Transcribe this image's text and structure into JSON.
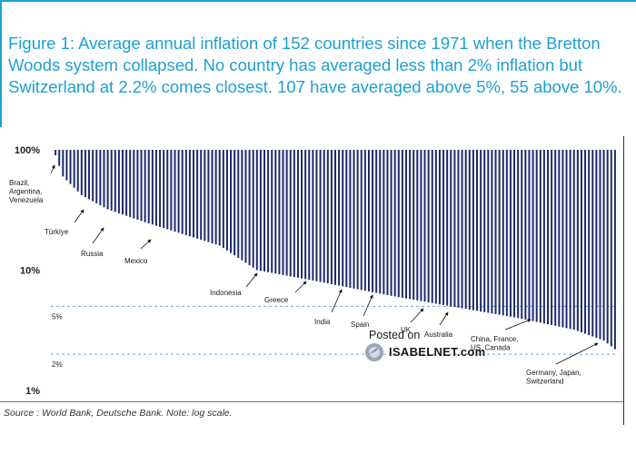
{
  "title": "Figure 1: Average annual inflation of 152 countries since 1971 when the Bretton Woods system collapsed. No country has averaged less than 2% inflation but Switzerland at 2.2% comes closest. 107 have averaged above 5%, 55 above 10%.",
  "source": "Source : World Bank, Deutsche Bank. Note: log scale.",
  "watermark": {
    "posted": "Posted on",
    "site": "ISABELNET.com"
  },
  "colors": {
    "bars": "#1b2a6e",
    "title": "#1f9fd1",
    "reference_line": "#6fa8d6",
    "arrow": "#111111"
  },
  "chart_data": {
    "type": "bar",
    "scale": "log",
    "n_countries": 152,
    "ylim": [
      1,
      100
    ],
    "y_ticks": [
      {
        "value": 100,
        "label": "100%"
      },
      {
        "value": 10,
        "label": "10%"
      },
      {
        "value": 1,
        "label": "1%"
      }
    ],
    "reference_lines": [
      {
        "value": 5,
        "label": "5%"
      },
      {
        "value": 2,
        "label": "2%"
      }
    ],
    "value_keypoints": [
      {
        "rank": 0,
        "value": 100
      },
      {
        "rank": 1,
        "value": 90
      },
      {
        "rank": 3,
        "value": 60
      },
      {
        "rank": 8,
        "value": 42
      },
      {
        "rank": 15,
        "value": 32
      },
      {
        "rank": 25,
        "value": 25
      },
      {
        "rank": 35,
        "value": 20
      },
      {
        "rank": 45,
        "value": 16
      },
      {
        "rank": 55,
        "value": 10
      },
      {
        "rank": 70,
        "value": 8.2
      },
      {
        "rank": 90,
        "value": 6.2
      },
      {
        "rank": 107,
        "value": 5
      },
      {
        "rank": 125,
        "value": 4.0
      },
      {
        "rank": 140,
        "value": 3.2
      },
      {
        "rank": 148,
        "value": 2.6
      },
      {
        "rank": 151,
        "value": 2.2
      }
    ],
    "annotations": [
      {
        "label": "Brazil,\nArgentina,\nVenezuela",
        "rank": 1
      },
      {
        "label": "Türkiye",
        "rank": 12
      },
      {
        "label": "Russia",
        "rank": 22
      },
      {
        "label": "Mexico",
        "rank": 34
      },
      {
        "label": "Indonesia",
        "rank": 61
      },
      {
        "label": "Greece",
        "rank": 72
      },
      {
        "label": "India",
        "rank": 85
      },
      {
        "label": "Spain",
        "rank": 94
      },
      {
        "label": "UK",
        "rank": 110
      },
      {
        "label": "Australia",
        "rank": 115
      },
      {
        "label": "China, France,\nUS, Canada",
        "rank": 136
      },
      {
        "label": "Germany, Japan,\nSwitzerland",
        "rank": 149
      }
    ]
  }
}
